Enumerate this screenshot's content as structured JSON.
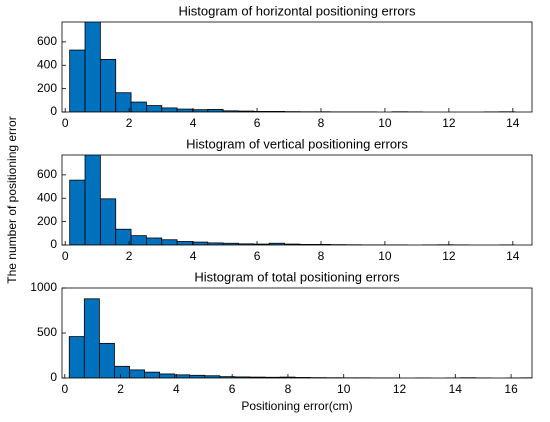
{
  "chart_data": [
    {
      "type": "histogram",
      "title": "Histogram of horizontal positioning errors",
      "color": "#0072bd",
      "bins": [
        0.14,
        0.62,
        1.1,
        1.58,
        2.06,
        2.54,
        3.02,
        3.5,
        3.98,
        4.46,
        4.94,
        5.42,
        5.9,
        6.38,
        6.86,
        7.34,
        7.82,
        8.3,
        8.78,
        9.26,
        9.74,
        10.22,
        10.7,
        11.18,
        11.66,
        12.14,
        12.62,
        13.1,
        13.58,
        14.06
      ],
      "values": [
        530,
        780,
        450,
        165,
        85,
        55,
        35,
        25,
        20,
        22,
        10,
        8,
        5,
        5,
        3,
        2,
        2,
        1,
        1,
        1,
        0,
        2,
        1,
        0,
        0,
        0,
        0,
        1,
        2
      ],
      "xlim": [
        -0.1,
        14.6
      ],
      "xticks": [
        0,
        2,
        4,
        6,
        8,
        10,
        12,
        14
      ],
      "ylim": [
        0,
        770
      ],
      "yticks": [
        0,
        200,
        400,
        600
      ]
    },
    {
      "type": "histogram",
      "title": "Histogram of vertical positioning errors",
      "color": "#0072bd",
      "y_label": "The number of positioning error",
      "bins": [
        0.14,
        0.62,
        1.1,
        1.58,
        2.06,
        2.54,
        3.02,
        3.5,
        3.98,
        4.46,
        4.94,
        5.42,
        5.9,
        6.38,
        6.86,
        7.34,
        7.82,
        8.3,
        8.78,
        9.26,
        9.74,
        10.22,
        10.7,
        11.18,
        11.66,
        12.14,
        12.62,
        13.1,
        13.58,
        14.06
      ],
      "values": [
        555,
        780,
        395,
        135,
        80,
        60,
        45,
        30,
        25,
        18,
        15,
        10,
        8,
        15,
        8,
        5,
        5,
        3,
        2,
        1,
        1,
        1,
        0,
        1,
        2,
        1,
        0,
        0,
        1
      ],
      "xlim": [
        -0.1,
        14.6
      ],
      "xticks": [
        0,
        2,
        4,
        6,
        8,
        10,
        12,
        14
      ],
      "ylim": [
        0,
        770
      ],
      "yticks": [
        0,
        200,
        400,
        600
      ]
    },
    {
      "type": "histogram",
      "title": "Histogram of total positioning errors",
      "color": "#0072bd",
      "x_label": "Positioning error(cm)",
      "bins": [
        0.16,
        0.7,
        1.24,
        1.78,
        2.32,
        2.86,
        3.4,
        3.94,
        4.48,
        5.02,
        5.56,
        6.1,
        6.64,
        7.18,
        7.72,
        8.26,
        8.8,
        9.34,
        9.88,
        10.42,
        10.96,
        11.5,
        12.04,
        12.58,
        13.12,
        13.66,
        14.2,
        14.74,
        15.28,
        15.82,
        16.36,
        16.9
      ],
      "values": [
        460,
        880,
        385,
        130,
        90,
        65,
        45,
        35,
        30,
        25,
        15,
        12,
        10,
        8,
        10,
        6,
        4,
        3,
        2,
        2,
        1,
        1,
        0,
        1,
        0,
        1,
        3,
        1,
        0,
        1,
        2
      ],
      "xlim": [
        -0.1,
        16.75
      ],
      "xticks": [
        0,
        2,
        4,
        6,
        8,
        10,
        12,
        14,
        16
      ],
      "ylim": [
        0,
        1000
      ],
      "yticks": [
        0,
        500,
        1000
      ]
    }
  ]
}
